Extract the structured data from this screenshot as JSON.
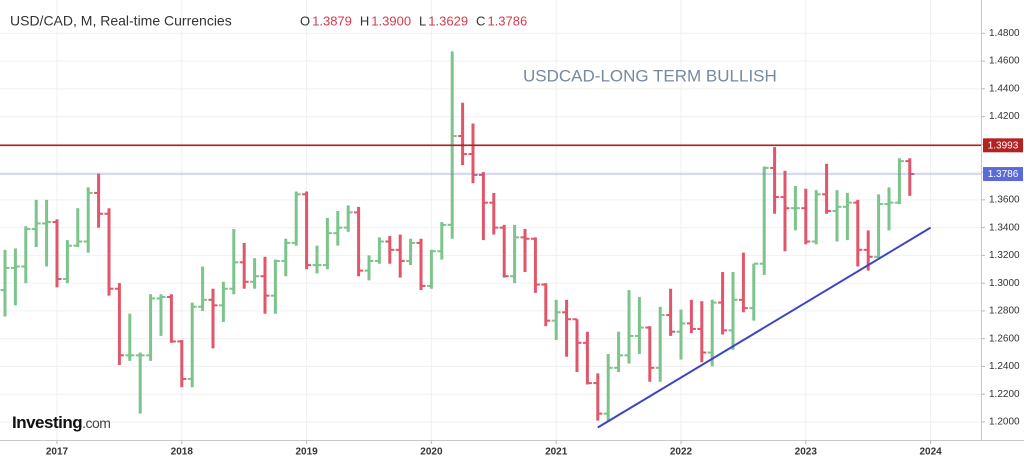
{
  "chart_data": {
    "type": "ohlc",
    "title": "USD/CAD, M, Real-time Currencies",
    "quote": [
      {
        "key": "O",
        "value": "1.3879"
      },
      {
        "key": "H",
        "value": "1.3900"
      },
      {
        "key": "L",
        "value": "1.3629"
      },
      {
        "key": "C",
        "value": "1.3786"
      }
    ],
    "annotation": "USDCAD-LONG TERM BULLISH",
    "logo": [
      "Investing",
      ".com"
    ],
    "up_color": "#7cc48b",
    "down_color": "#e0566a",
    "grid": true,
    "ylim": [
      1.187,
      1.504
    ],
    "yticks": [
      {
        "value": 1.2,
        "label": "1.2000"
      },
      {
        "value": 1.22,
        "label": "1.2200"
      },
      {
        "value": 1.24,
        "label": "1.2400"
      },
      {
        "value": 1.26,
        "label": "1.2600"
      },
      {
        "value": 1.28,
        "label": "1.2800"
      },
      {
        "value": 1.3,
        "label": "1.3000"
      },
      {
        "value": 1.32,
        "label": "1.3200"
      },
      {
        "value": 1.34,
        "label": "1.3400"
      },
      {
        "value": 1.36,
        "label": "1.3600"
      },
      {
        "value": 1.38,
        "label": "1.3800"
      },
      {
        "value": 1.4,
        "label": "1.4000"
      },
      {
        "value": 1.42,
        "label": "1.4200"
      },
      {
        "value": 1.44,
        "label": "1.4400"
      },
      {
        "value": 1.46,
        "label": "1.4600"
      },
      {
        "value": 1.48,
        "label": "1.4800"
      }
    ],
    "xticks": [
      2017,
      2018,
      2019,
      2020,
      2021,
      2022,
      2023,
      2024
    ],
    "levels": [
      {
        "value": 1.3993,
        "color": "#b22222"
      },
      {
        "value": 1.3786,
        "color": "#5b6ad6"
      }
    ],
    "trendline": {
      "x": [
        "2021-05",
        "2024-01"
      ],
      "values": [
        1.196,
        1.34
      ],
      "color": "#3d45c4"
    },
    "x": [
      "2016-08",
      "2016-09",
      "2016-10",
      "2016-11",
      "2016-12",
      "2017-01",
      "2017-02",
      "2017-03",
      "2017-04",
      "2017-05",
      "2017-06",
      "2017-07",
      "2017-08",
      "2017-09",
      "2017-10",
      "2017-11",
      "2017-12",
      "2018-01",
      "2018-02",
      "2018-03",
      "2018-04",
      "2018-05",
      "2018-06",
      "2018-07",
      "2018-08",
      "2018-09",
      "2018-10",
      "2018-11",
      "2018-12",
      "2019-01",
      "2019-02",
      "2019-03",
      "2019-04",
      "2019-05",
      "2019-06",
      "2019-07",
      "2019-08",
      "2019-09",
      "2019-10",
      "2019-11",
      "2019-12",
      "2020-01",
      "2020-02",
      "2020-03",
      "2020-04",
      "2020-05",
      "2020-06",
      "2020-07",
      "2020-08",
      "2020-09",
      "2020-10",
      "2020-11",
      "2020-12",
      "2021-01",
      "2021-02",
      "2021-03",
      "2021-04",
      "2021-05",
      "2021-06",
      "2021-07",
      "2021-08",
      "2021-09",
      "2021-10",
      "2021-11",
      "2021-12",
      "2022-01",
      "2022-02",
      "2022-03",
      "2022-04",
      "2022-05",
      "2022-06",
      "2022-07",
      "2022-08",
      "2022-09",
      "2022-10",
      "2022-11",
      "2022-12",
      "2023-01",
      "2023-02",
      "2023-03",
      "2023-04",
      "2023-05",
      "2023-06",
      "2023-07",
      "2023-08",
      "2023-09",
      "2023-10",
      "2023-11"
    ],
    "open": [
      1.295,
      1.311,
      1.312,
      1.339,
      1.343,
      1.344,
      1.303,
      1.327,
      1.33,
      1.365,
      1.35,
      1.296,
      1.248,
      1.248,
      1.248,
      1.289,
      1.29,
      1.258,
      1.231,
      1.283,
      1.288,
      1.284,
      1.296,
      1.315,
      1.301,
      1.305,
      1.291,
      1.316,
      1.329,
      1.364,
      1.313,
      1.313,
      1.336,
      1.34,
      1.351,
      1.309,
      1.316,
      1.33,
      1.324,
      1.316,
      1.329,
      1.298,
      1.323,
      1.342,
      1.406,
      1.393,
      1.378,
      1.358,
      1.34,
      1.305,
      1.333,
      1.332,
      1.299,
      1.273,
      1.279,
      1.274,
      1.257,
      1.228,
      1.206,
      1.239,
      1.248,
      1.262,
      1.268,
      1.239,
      1.277,
      1.265,
      1.271,
      1.267,
      1.25,
      1.286,
      1.266,
      1.288,
      1.282,
      1.314,
      1.383,
      1.362,
      1.354,
      1.354,
      1.33,
      1.364,
      1.352,
      1.355,
      1.358,
      1.324,
      1.319,
      1.357,
      1.358,
      1.3879
    ],
    "high": [
      1.324,
      1.325,
      1.341,
      1.36,
      1.36,
      1.346,
      1.331,
      1.354,
      1.369,
      1.379,
      1.354,
      1.3,
      1.278,
      1.25,
      1.292,
      1.292,
      1.292,
      1.259,
      1.286,
      1.312,
      1.296,
      1.301,
      1.339,
      1.329,
      1.318,
      1.319,
      1.317,
      1.332,
      1.366,
      1.366,
      1.327,
      1.347,
      1.352,
      1.356,
      1.355,
      1.32,
      1.333,
      1.334,
      1.335,
      1.332,
      1.332,
      1.324,
      1.344,
      1.467,
      1.43,
      1.415,
      1.38,
      1.365,
      1.342,
      1.342,
      1.339,
      1.333,
      1.3,
      1.288,
      1.288,
      1.274,
      1.265,
      1.235,
      1.249,
      1.265,
      1.295,
      1.29,
      1.269,
      1.283,
      1.296,
      1.281,
      1.288,
      1.287,
      1.288,
      1.308,
      1.308,
      1.322,
      1.314,
      1.384,
      1.398,
      1.381,
      1.37,
      1.368,
      1.367,
      1.386,
      1.367,
      1.365,
      1.36,
      1.338,
      1.364,
      1.369,
      1.39,
      1.39
    ],
    "low": [
      1.276,
      1.284,
      1.3,
      1.326,
      1.312,
      1.297,
      1.3,
      1.326,
      1.322,
      1.34,
      1.291,
      1.241,
      1.244,
      1.206,
      1.244,
      1.262,
      1.257,
      1.225,
      1.225,
      1.28,
      1.253,
      1.272,
      1.292,
      1.296,
      1.296,
      1.278,
      1.278,
      1.305,
      1.327,
      1.31,
      1.307,
      1.31,
      1.327,
      1.337,
      1.305,
      1.302,
      1.314,
      1.314,
      1.304,
      1.313,
      1.295,
      1.296,
      1.317,
      1.332,
      1.385,
      1.372,
      1.331,
      1.335,
      1.304,
      1.3,
      1.308,
      1.293,
      1.269,
      1.259,
      1.247,
      1.236,
      1.227,
      1.201,
      1.2,
      1.236,
      1.242,
      1.249,
      1.229,
      1.229,
      1.262,
      1.245,
      1.264,
      1.243,
      1.24,
      1.263,
      1.252,
      1.279,
      1.273,
      1.306,
      1.35,
      1.323,
      1.338,
      1.328,
      1.328,
      1.35,
      1.33,
      1.331,
      1.312,
      1.309,
      1.318,
      1.338,
      1.357,
      1.3629
    ],
    "close": [
      1.311,
      1.312,
      1.339,
      1.343,
      1.344,
      1.303,
      1.327,
      1.33,
      1.365,
      1.35,
      1.296,
      1.248,
      1.248,
      1.248,
      1.289,
      1.29,
      1.258,
      1.231,
      1.283,
      1.288,
      1.284,
      1.296,
      1.315,
      1.301,
      1.305,
      1.291,
      1.316,
      1.329,
      1.364,
      1.313,
      1.313,
      1.336,
      1.34,
      1.351,
      1.309,
      1.316,
      1.33,
      1.324,
      1.316,
      1.329,
      1.298,
      1.323,
      1.342,
      1.406,
      1.393,
      1.378,
      1.358,
      1.34,
      1.305,
      1.333,
      1.332,
      1.299,
      1.273,
      1.279,
      1.274,
      1.257,
      1.228,
      1.206,
      1.239,
      1.248,
      1.262,
      1.268,
      1.239,
      1.277,
      1.265,
      1.271,
      1.267,
      1.25,
      1.286,
      1.266,
      1.288,
      1.282,
      1.314,
      1.383,
      1.362,
      1.354,
      1.354,
      1.33,
      1.364,
      1.352,
      1.355,
      1.358,
      1.324,
      1.319,
      1.357,
      1.358,
      1.3879,
      1.3786
    ]
  }
}
